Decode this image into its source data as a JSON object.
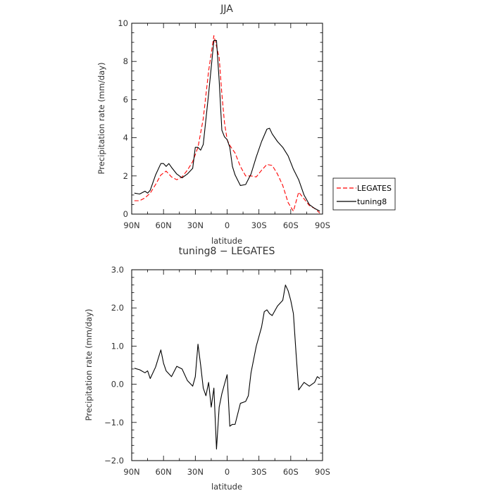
{
  "chart_data": [
    {
      "type": "line",
      "title": "JJA",
      "xlabel": "latitude",
      "ylabel": "Precipitation rate (mm/day)",
      "x_ticks": [
        "90N",
        "60N",
        "30N",
        "0",
        "30S",
        "60S",
        "90S"
      ],
      "y_ticks": [
        "0",
        "2",
        "4",
        "6",
        "8",
        "10"
      ],
      "xlim": [
        -90,
        90
      ],
      "ylim": [
        0,
        10
      ],
      "legend_position": "right",
      "series": [
        {
          "name": "LEGATES",
          "color": "#ff0000",
          "dash": "dashed",
          "x": [
            -87.5,
            -82.5,
            -77.5,
            -72.5,
            -67.5,
            -62.5,
            -57.5,
            -52.5,
            -47.5,
            -42.5,
            -37.5,
            -32.5,
            -27.5,
            -22.5,
            -17.5,
            -12.5,
            -7.5,
            -5,
            -2.5,
            0,
            2.5,
            7.5,
            12.5,
            17.5,
            22.5,
            27.5,
            32.5,
            37.5,
            42.5,
            47.5,
            52.5,
            57.5,
            62.5,
            67.5,
            72.5,
            77.5,
            82.5,
            87.5
          ],
          "values": [
            0.7,
            0.7,
            0.85,
            1.1,
            1.55,
            2.05,
            2.25,
            1.95,
            1.8,
            1.95,
            2.3,
            2.75,
            3.5,
            5.0,
            7.5,
            9.35,
            8.2,
            6.3,
            4.8,
            3.9,
            3.6,
            3.2,
            2.5,
            2.0,
            2.0,
            1.95,
            2.3,
            2.6,
            2.55,
            2.1,
            1.5,
            0.6,
            0.15,
            1.15,
            0.8,
            0.45,
            0.3,
            0.05
          ]
        },
        {
          "name": "tuning8",
          "color": "#000000",
          "dash": "solid",
          "x": [
            -87.5,
            -82.5,
            -77.5,
            -75,
            -72.5,
            -67.5,
            -62.5,
            -60,
            -57.5,
            -55,
            -52.5,
            -47.5,
            -42.5,
            -37.5,
            -32.5,
            -30,
            -27.5,
            -25,
            -22.5,
            -17.5,
            -12.5,
            -10,
            -7.5,
            -5,
            -2.5,
            0,
            2.5,
            5,
            7.5,
            12.5,
            17.5,
            22.5,
            27.5,
            32.5,
            37.5,
            40,
            42.5,
            47.5,
            52.5,
            57.5,
            62.5,
            67.5,
            72.5,
            77.5,
            82.5,
            87.5
          ],
          "values": [
            1.1,
            1.05,
            1.2,
            1.1,
            1.25,
            2.05,
            2.65,
            2.65,
            2.5,
            2.65,
            2.45,
            2.1,
            1.9,
            2.1,
            2.4,
            3.5,
            3.5,
            3.35,
            3.65,
            6.3,
            9.1,
            9.1,
            7.0,
            4.4,
            4.05,
            3.9,
            3.5,
            2.5,
            2.05,
            1.5,
            1.55,
            2.1,
            3.0,
            3.8,
            4.45,
            4.5,
            4.2,
            3.8,
            3.5,
            3.05,
            2.35,
            1.8,
            1.0,
            0.5,
            0.3,
            0.15
          ]
        }
      ]
    },
    {
      "type": "line",
      "title": "tuning8 − LEGATES",
      "xlabel": "latitude",
      "ylabel": "Precipitation rate (mm/day)",
      "x_ticks": [
        "90N",
        "60N",
        "30N",
        "0",
        "30S",
        "60S",
        "90S"
      ],
      "y_ticks": [
        "−2.0",
        "−1.0",
        "0.0",
        "1.0",
        "2.0",
        "3.0"
      ],
      "xlim": [
        -90,
        90
      ],
      "ylim": [
        -2,
        3
      ],
      "series": [
        {
          "color": "#000000",
          "dash": "solid",
          "x": [
            -87.5,
            -82.5,
            -77.5,
            -75,
            -72.5,
            -67.5,
            -62.5,
            -60,
            -57.5,
            -52.5,
            -47.5,
            -42.5,
            -37.5,
            -32.5,
            -30,
            -27.5,
            -25,
            -22.5,
            -20,
            -17.5,
            -15,
            -12.5,
            -10,
            -7.5,
            -5,
            -2.5,
            0,
            2.5,
            5,
            7.5,
            12.5,
            17.5,
            20,
            22.5,
            27.5,
            32.5,
            35,
            37.5,
            40,
            42.5,
            47.5,
            52.5,
            55,
            57.5,
            60,
            62.5,
            65,
            67.5,
            70,
            72.5,
            77.5,
            82.5,
            85,
            87.5
          ],
          "values": [
            0.42,
            0.38,
            0.3,
            0.35,
            0.15,
            0.45,
            0.9,
            0.55,
            0.35,
            0.2,
            0.47,
            0.4,
            0.1,
            -0.05,
            0.2,
            1.05,
            0.5,
            -0.1,
            -0.3,
            0.05,
            -0.6,
            -0.1,
            -1.7,
            -0.6,
            -0.25,
            0.0,
            0.25,
            -1.1,
            -1.05,
            -1.05,
            -0.5,
            -0.45,
            -0.3,
            0.3,
            1.0,
            1.5,
            1.9,
            1.95,
            1.85,
            1.8,
            2.05,
            2.2,
            2.6,
            2.45,
            2.2,
            1.85,
            0.8,
            -0.15,
            -0.05,
            0.05,
            -0.05,
            0.05,
            0.2,
            0.15
          ]
        }
      ]
    }
  ]
}
